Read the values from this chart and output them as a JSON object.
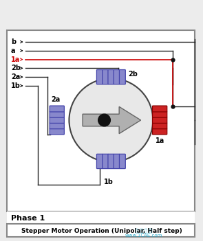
{
  "bg_color": "#ececec",
  "diagram_bg": "#ffffff",
  "border_color": "#888888",
  "title_text": "Stepper Motor Operation (Unipolar, Half step)",
  "phase_text": "Phase 1",
  "labels_left": [
    "b",
    "a",
    "1a",
    "2b",
    "2a",
    "1b"
  ],
  "active_label": "1a",
  "active_color": "#cc0000",
  "inactive_color": "#000000",
  "coil_blue": "#8888cc",
  "coil_blue_border": "#4444aa",
  "coil_red": "#cc2222",
  "coil_red_border": "#880000",
  "motor_circle_color": "#e8e8e8",
  "motor_outline": "#444444",
  "rotor_body_color": "#b0b0b0",
  "rotor_outline": "#666666",
  "black_dot": "#111111",
  "wire_color": "#222222",
  "watermark_color": "#22aacc",
  "junction_dot": "#111111"
}
